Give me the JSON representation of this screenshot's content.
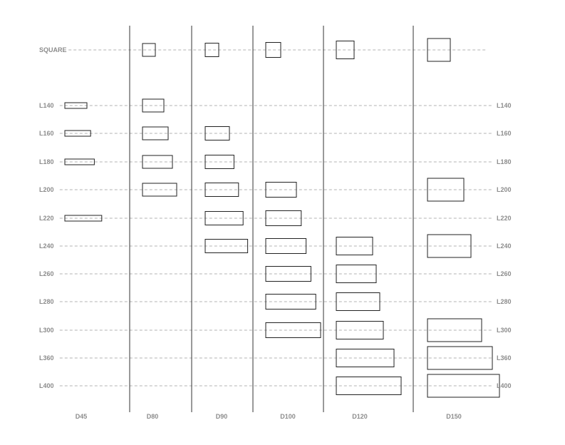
{
  "columns": [
    {
      "label": "D45",
      "diameter": 45
    },
    {
      "label": "D80",
      "diameter": 80
    },
    {
      "label": "D90",
      "diameter": 90
    },
    {
      "label": "D100",
      "diameter": 100
    },
    {
      "label": "D120",
      "diameter": 120
    },
    {
      "label": "D150",
      "diameter": 150
    }
  ],
  "rows": [
    {
      "label": "SQUARE",
      "right_label": "",
      "length": null
    },
    {
      "label": "L140",
      "right_label": "L140",
      "length": 140
    },
    {
      "label": "L160",
      "right_label": "L160",
      "length": 160
    },
    {
      "label": "L180",
      "right_label": "L180",
      "length": 180
    },
    {
      "label": "L200",
      "right_label": "L200",
      "length": 200
    },
    {
      "label": "L220",
      "right_label": "L220",
      "length": 220
    },
    {
      "label": "L240",
      "right_label": "L240",
      "length": 240
    },
    {
      "label": "L260",
      "right_label": "L260",
      "length": 260
    },
    {
      "label": "L280",
      "right_label": "L280",
      "length": 280
    },
    {
      "label": "L300",
      "right_label": "L300",
      "length": 300
    },
    {
      "label": "L360",
      "right_label": "L360",
      "length": 360
    },
    {
      "label": "L400",
      "right_label": "L400",
      "length": 400
    }
  ],
  "available_sizes": [
    {
      "column": "D45",
      "rows": [
        "L140",
        "L160",
        "L180",
        "L220"
      ]
    },
    {
      "column": "D80",
      "rows": [
        "SQUARE",
        "L140",
        "L160",
        "L180",
        "L200"
      ]
    },
    {
      "column": "D90",
      "rows": [
        "SQUARE",
        "L160",
        "L180",
        "L200",
        "L220",
        "L240"
      ]
    },
    {
      "column": "D100",
      "rows": [
        "SQUARE",
        "L200",
        "L220",
        "L240",
        "L260",
        "L280",
        "L300"
      ]
    },
    {
      "column": "D120",
      "rows": [
        "SQUARE",
        "L240",
        "L260",
        "L280",
        "L300",
        "L360",
        "L400"
      ]
    },
    {
      "column": "D150",
      "rows": [
        "SQUARE",
        "L200",
        "L240",
        "L300",
        "L360",
        "L400"
      ]
    }
  ]
}
